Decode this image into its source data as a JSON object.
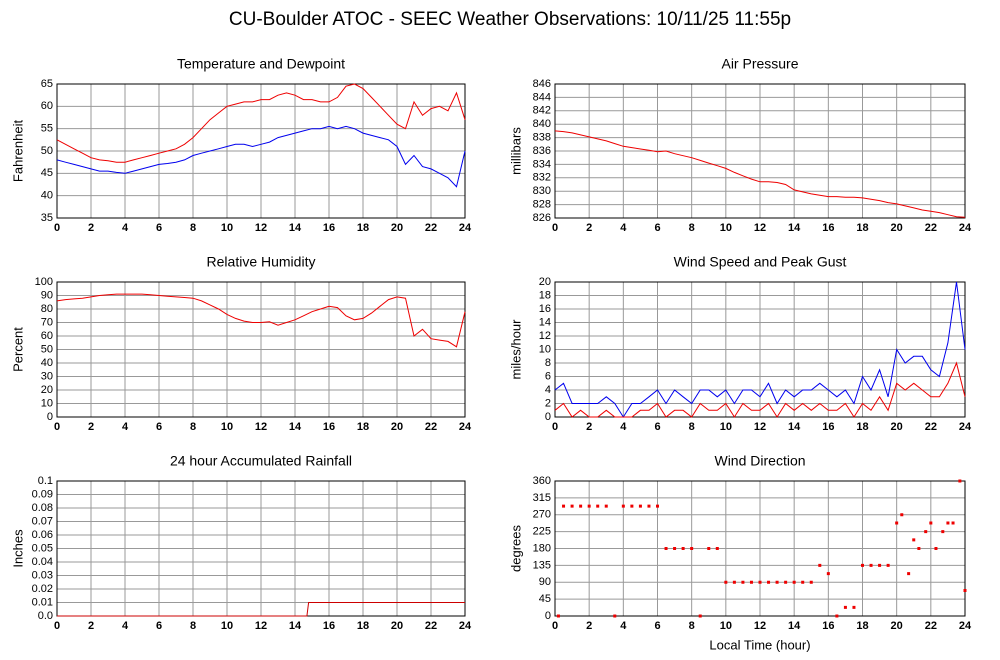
{
  "title": "CU-Boulder ATOC - SEEC Weather Observations: 10/11/25 11:55p",
  "chart_data": [
    {
      "type": "line",
      "title": "Temperature and Dewpoint",
      "ylabel": "Fahrenheit",
      "x": [
        0,
        0.5,
        1,
        1.5,
        2,
        2.5,
        3,
        3.5,
        4,
        4.5,
        5,
        5.5,
        6,
        6.5,
        7,
        7.5,
        8,
        8.5,
        9,
        9.5,
        10,
        10.5,
        11,
        11.5,
        12,
        12.5,
        13,
        13.5,
        14,
        14.5,
        15,
        15.5,
        16,
        16.5,
        17,
        17.5,
        18,
        18.5,
        19,
        19.5,
        20,
        20.5,
        21,
        21.5,
        22,
        22.5,
        23,
        23.5,
        24
      ],
      "series": [
        {
          "color": "#ee0000",
          "values": [
            52.5,
            51.5,
            50.5,
            49.5,
            48.5,
            48,
            47.8,
            47.5,
            47.5,
            48,
            48.5,
            49,
            49.5,
            50,
            50.5,
            51.5,
            53,
            55,
            57,
            58.5,
            60,
            60.5,
            61,
            61,
            61.5,
            61.5,
            62.5,
            63,
            62.5,
            61.5,
            61.5,
            61,
            61,
            62,
            64.5,
            65,
            64,
            62,
            60,
            58,
            56,
            55,
            61,
            58,
            59.5,
            60,
            59,
            63,
            57
          ]
        },
        {
          "color": "#0000ee",
          "values": [
            48,
            47.5,
            47,
            46.5,
            46,
            45.5,
            45.5,
            45.2,
            45,
            45.5,
            46,
            46.5,
            47,
            47.2,
            47.5,
            48,
            49,
            49.5,
            50,
            50.5,
            51,
            51.5,
            51.5,
            51,
            51.5,
            52,
            53,
            53.5,
            54,
            54.5,
            55,
            55,
            55.5,
            55,
            55.5,
            55,
            54,
            53.5,
            53,
            52.5,
            51,
            47,
            49,
            46.5,
            46,
            45,
            44,
            42,
            50
          ]
        }
      ],
      "xlim": [
        0,
        24
      ],
      "xticks": [
        0,
        2,
        4,
        6,
        8,
        10,
        12,
        14,
        16,
        18,
        20,
        22,
        24
      ],
      "ylim": [
        35,
        65
      ],
      "yticks": [
        35,
        40,
        45,
        50,
        55,
        60,
        65
      ],
      "grid": true
    },
    {
      "type": "line",
      "title": "Air Pressure",
      "ylabel": "millibars",
      "x": [
        0,
        0.5,
        1,
        1.5,
        2,
        2.5,
        3,
        3.5,
        4,
        4.5,
        5,
        5.5,
        6,
        6.5,
        7,
        7.5,
        8,
        8.5,
        9,
        9.5,
        10,
        10.5,
        11,
        11.5,
        12,
        12.5,
        13,
        13.5,
        14,
        14.5,
        15,
        15.5,
        16,
        16.5,
        17,
        17.5,
        18,
        18.5,
        19,
        19.5,
        20,
        20.5,
        21,
        21.5,
        22,
        22.5,
        23,
        23.5,
        24
      ],
      "series": [
        {
          "color": "#ee0000",
          "values": [
            839,
            838.9,
            838.7,
            838.4,
            838.1,
            837.8,
            837.5,
            837.1,
            836.7,
            836.5,
            836.3,
            836.1,
            835.9,
            836,
            835.6,
            835.3,
            835,
            834.6,
            834.2,
            833.8,
            833.4,
            832.8,
            832.3,
            831.8,
            831.4,
            831.4,
            831.3,
            831,
            830.2,
            829.9,
            829.6,
            829.4,
            829.2,
            829.2,
            829.1,
            829.1,
            829,
            828.8,
            828.6,
            828.3,
            828.1,
            827.8,
            827.5,
            827.2,
            827,
            826.8,
            826.5,
            826.2,
            826.1
          ]
        }
      ],
      "xlim": [
        0,
        24
      ],
      "xticks": [
        0,
        2,
        4,
        6,
        8,
        10,
        12,
        14,
        16,
        18,
        20,
        22,
        24
      ],
      "ylim": [
        826,
        846
      ],
      "yticks": [
        826,
        828,
        830,
        832,
        834,
        836,
        838,
        840,
        842,
        844,
        846
      ],
      "grid": true
    },
    {
      "type": "line",
      "title": "Relative Humidity",
      "ylabel": "Percent",
      "x": [
        0,
        0.5,
        1,
        1.5,
        2,
        2.5,
        3,
        3.5,
        4,
        4.5,
        5,
        5.5,
        6,
        6.5,
        7,
        7.5,
        8,
        8.5,
        9,
        9.5,
        10,
        10.5,
        11,
        11.5,
        12,
        12.5,
        13,
        13.5,
        14,
        14.5,
        15,
        15.5,
        16,
        16.5,
        17,
        17.5,
        18,
        18.5,
        19,
        19.5,
        20,
        20.5,
        21,
        21.5,
        22,
        22.5,
        23,
        23.5,
        24
      ],
      "series": [
        {
          "color": "#ee0000",
          "values": [
            86,
            87,
            87.5,
            88,
            89,
            90,
            90.5,
            91,
            91,
            91,
            91,
            90.5,
            90,
            89.5,
            89,
            88.5,
            88,
            86,
            83,
            80,
            76,
            73,
            71,
            70,
            70,
            70.5,
            68,
            70,
            72,
            75,
            78,
            80,
            82,
            81,
            75,
            72,
            73,
            77,
            82,
            87,
            89,
            88,
            60,
            65,
            58,
            57,
            56,
            52,
            78
          ]
        }
      ],
      "xlim": [
        0,
        24
      ],
      "xticks": [
        0,
        2,
        4,
        6,
        8,
        10,
        12,
        14,
        16,
        18,
        20,
        22,
        24
      ],
      "ylim": [
        0,
        100
      ],
      "yticks": [
        0,
        10,
        20,
        30,
        40,
        50,
        60,
        70,
        80,
        90,
        100
      ],
      "grid": true
    },
    {
      "type": "line",
      "title": "Wind Speed and Peak Gust",
      "ylabel": "miles/hour",
      "x": [
        0,
        0.5,
        1,
        1.5,
        2,
        2.5,
        3,
        3.5,
        4,
        4.5,
        5,
        5.5,
        6,
        6.5,
        7,
        7.5,
        8,
        8.5,
        9,
        9.5,
        10,
        10.5,
        11,
        11.5,
        12,
        12.5,
        13,
        13.5,
        14,
        14.5,
        15,
        15.5,
        16,
        16.5,
        17,
        17.5,
        18,
        18.5,
        19,
        19.5,
        20,
        20.5,
        21,
        21.5,
        22,
        22.5,
        23,
        23.5,
        24
      ],
      "series": [
        {
          "color": "#0000ee",
          "values": [
            4,
            5,
            2,
            2,
            2,
            2,
            3,
            2,
            0,
            2,
            2,
            3,
            4,
            2,
            4,
            3,
            2,
            4,
            4,
            3,
            4,
            2,
            4,
            4,
            3,
            5,
            2,
            4,
            3,
            4,
            4,
            5,
            4,
            3,
            4,
            2,
            6,
            4,
            7,
            3,
            10,
            8,
            9,
            9,
            7,
            6,
            11,
            20,
            10
          ]
        },
        {
          "color": "#ee0000",
          "values": [
            1,
            2,
            0,
            1,
            0,
            0,
            1,
            0,
            0,
            0,
            1,
            1,
            2,
            0,
            1,
            1,
            0,
            2,
            1,
            1,
            2,
            0,
            2,
            1,
            1,
            2,
            0,
            2,
            1,
            2,
            1,
            2,
            1,
            1,
            2,
            0,
            2,
            1,
            3,
            1,
            5,
            4,
            5,
            4,
            3,
            3,
            5,
            8,
            3
          ]
        }
      ],
      "xlim": [
        0,
        24
      ],
      "xticks": [
        0,
        2,
        4,
        6,
        8,
        10,
        12,
        14,
        16,
        18,
        20,
        22,
        24
      ],
      "ylim": [
        0,
        20
      ],
      "yticks": [
        0,
        2,
        4,
        6,
        8,
        10,
        12,
        14,
        16,
        18,
        20
      ],
      "grid": true
    },
    {
      "type": "line",
      "title": "24 hour Accumulated Rainfall",
      "ylabel": "Inches",
      "x": [
        0,
        14.7,
        14.8,
        24
      ],
      "series": [
        {
          "color": "#cc0000",
          "values": [
            0,
            0,
            0.01,
            0.01
          ]
        }
      ],
      "xlim": [
        0,
        24
      ],
      "xticks": [
        0,
        2,
        4,
        6,
        8,
        10,
        12,
        14,
        16,
        18,
        20,
        22,
        24
      ],
      "ylim": [
        0,
        0.1
      ],
      "yticks": [
        {
          "value": 0,
          "label": "0.0"
        },
        0.01,
        0.02,
        0.03,
        0.04,
        0.05,
        0.06,
        0.07,
        0.08,
        0.09,
        0.1
      ],
      "grid": true
    },
    {
      "type": "scatter",
      "title": "Wind Direction",
      "ylabel": "degrees",
      "xlabel": "Local Time (hour)",
      "x": [
        0.2,
        0.5,
        1,
        1.5,
        2,
        2.5,
        3,
        3.5,
        4,
        4.5,
        5,
        5.5,
        6,
        6.5,
        7,
        7.5,
        8,
        8.5,
        9,
        9.5,
        10,
        10.5,
        11,
        11.5,
        12,
        12.5,
        13,
        13.5,
        14,
        14.5,
        15,
        15.5,
        16,
        16.5,
        17,
        17.5,
        18,
        18.5,
        19,
        19.5,
        20,
        20.3,
        20.7,
        21,
        21.3,
        21.7,
        22,
        22.3,
        22.7,
        23,
        23.3,
        23.7,
        24
      ],
      "series": [
        {
          "color": "#ee0000",
          "values": [
            0,
            293,
            293,
            293,
            293,
            293,
            293,
            0,
            293,
            293,
            293,
            293,
            293,
            180,
            180,
            180,
            180,
            0,
            180,
            180,
            90,
            90,
            90,
            90,
            90,
            90,
            90,
            90,
            90,
            90,
            90,
            135,
            113,
            0,
            23,
            23,
            135,
            135,
            135,
            135,
            248,
            270,
            113,
            203,
            180,
            225,
            248,
            180,
            225,
            248,
            248,
            360,
            68
          ]
        }
      ],
      "xlim": [
        0,
        24
      ],
      "xticks": [
        0,
        2,
        4,
        6,
        8,
        10,
        12,
        14,
        16,
        18,
        20,
        22,
        24
      ],
      "ylim": [
        0,
        360
      ],
      "yticks": [
        0,
        45,
        90,
        135,
        180,
        225,
        270,
        315,
        360
      ],
      "grid": true
    }
  ]
}
